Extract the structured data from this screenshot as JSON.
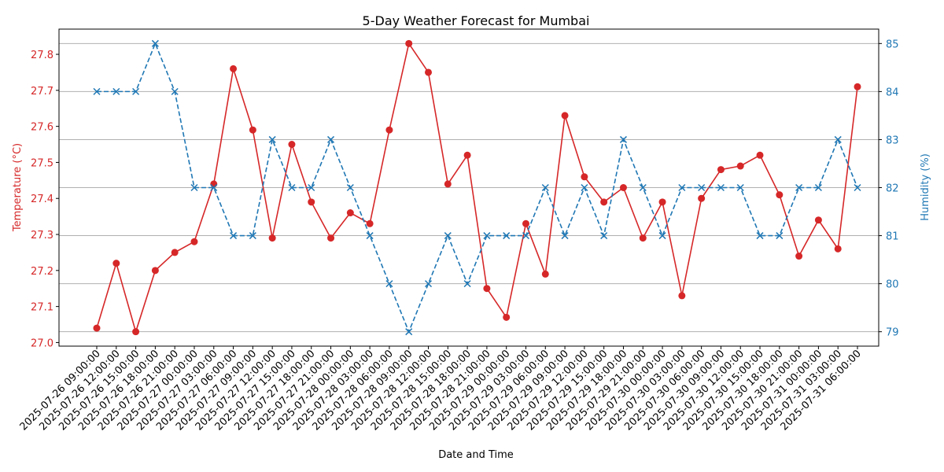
{
  "chart_data": {
    "type": "line",
    "title": "5-Day Weather Forecast for Mumbai",
    "xlabel": "Date and Time",
    "ylabel_left": "Temperature (°C)",
    "ylabel_right": "Humidity (%)",
    "x": [
      "2025-07-26 09:00:00",
      "2025-07-26 12:00:00",
      "2025-07-26 15:00:00",
      "2025-07-26 18:00:00",
      "2025-07-26 21:00:00",
      "2025-07-27 00:00:00",
      "2025-07-27 03:00:00",
      "2025-07-27 06:00:00",
      "2025-07-27 09:00:00",
      "2025-07-27 12:00:00",
      "2025-07-27 15:00:00",
      "2025-07-27 18:00:00",
      "2025-07-27 21:00:00",
      "2025-07-28 00:00:00",
      "2025-07-28 03:00:00",
      "2025-07-28 06:00:00",
      "2025-07-28 09:00:00",
      "2025-07-28 12:00:00",
      "2025-07-28 15:00:00",
      "2025-07-28 18:00:00",
      "2025-07-28 21:00:00",
      "2025-07-29 00:00:00",
      "2025-07-29 03:00:00",
      "2025-07-29 06:00:00",
      "2025-07-29 09:00:00",
      "2025-07-29 12:00:00",
      "2025-07-29 15:00:00",
      "2025-07-29 18:00:00",
      "2025-07-29 21:00:00",
      "2025-07-30 00:00:00",
      "2025-07-30 03:00:00",
      "2025-07-30 06:00:00",
      "2025-07-30 09:00:00",
      "2025-07-30 12:00:00",
      "2025-07-30 15:00:00",
      "2025-07-30 18:00:00",
      "2025-07-30 21:00:00",
      "2025-07-31 00:00:00",
      "2025-07-31 03:00:00",
      "2025-07-31 06:00:00"
    ],
    "series": [
      {
        "axis": "left",
        "color": "#d62728",
        "marker": "circle",
        "line_style": "solid",
        "values": [
          27.04,
          27.22,
          27.03,
          27.2,
          27.25,
          27.28,
          27.44,
          27.76,
          27.59,
          27.29,
          27.55,
          27.39,
          27.29,
          27.36,
          27.33,
          27.59,
          27.83,
          27.75,
          27.44,
          27.52,
          27.15,
          27.07,
          27.33,
          27.19,
          27.63,
          27.46,
          27.39,
          27.43,
          27.29,
          27.39,
          27.13,
          27.4,
          27.48,
          27.49,
          27.52,
          27.41,
          27.24,
          27.34,
          27.26,
          27.71
        ]
      },
      {
        "axis": "right",
        "color": "#1f77b4",
        "marker": "x",
        "line_style": "dashed",
        "values": [
          84,
          84,
          84,
          85,
          84,
          82,
          82,
          81,
          81,
          83,
          82,
          82,
          83,
          82,
          81,
          80,
          79,
          80,
          81,
          80,
          81,
          81,
          81,
          82,
          81,
          82,
          81,
          83,
          82,
          81,
          82,
          82,
          82,
          82,
          81,
          81,
          82,
          82,
          83,
          82
        ]
      }
    ],
    "ylim_left": [
      26.99,
      27.87
    ],
    "ylim_right": [
      78.7,
      85.3
    ],
    "yticks_left": [
      "27.0",
      "27.1",
      "27.2",
      "27.3",
      "27.4",
      "27.5",
      "27.6",
      "27.7",
      "27.8"
    ],
    "yticks_right": [
      "79",
      "80",
      "81",
      "82",
      "83",
      "84",
      "85"
    ],
    "grid": "horizontal, right axis",
    "legend": "none"
  }
}
